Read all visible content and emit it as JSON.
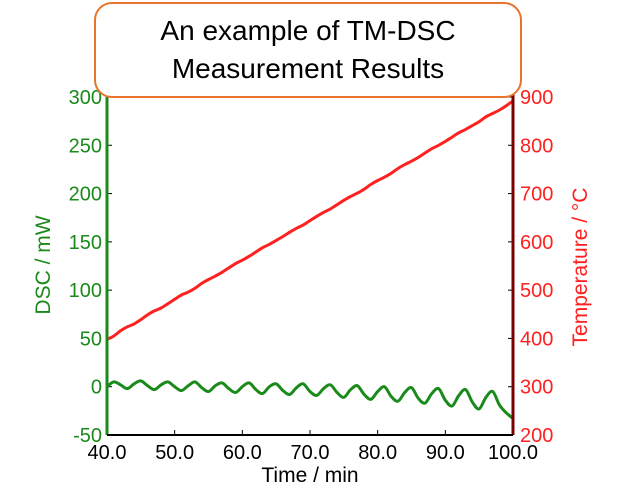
{
  "chart_data": {
    "type": "line",
    "title_lines": [
      "An example of TM-DSC",
      "Measurement Results"
    ],
    "xlabel": "Time / min",
    "ylabel_left": "DSC / mW",
    "ylabel_right": "Temperature / °C",
    "xlim": [
      40,
      100
    ],
    "ylim_left": [
      -50,
      300
    ],
    "ylim_right": [
      200,
      900
    ],
    "x_ticks": [
      "40.0",
      "50.0",
      "60.0",
      "70.0",
      "80.0",
      "90.0",
      "100.0"
    ],
    "y_ticks_left": [
      "-50",
      "0",
      "50",
      "100",
      "150",
      "200",
      "250",
      "300"
    ],
    "y_ticks_right": [
      "200",
      "300",
      "400",
      "500",
      "600",
      "700",
      "800",
      "900"
    ],
    "colors": {
      "dsc": "#1a8a1a",
      "temperature": "#ff2020",
      "axis": "#000000"
    },
    "series": [
      {
        "name": "DSC",
        "axis": "left",
        "color": "#1a8a1a",
        "x": [
          40,
          41,
          42,
          43,
          44,
          45,
          46,
          47,
          48,
          49,
          50,
          51,
          52,
          53,
          54,
          55,
          56,
          57,
          58,
          59,
          60,
          61,
          62,
          63,
          64,
          65,
          66,
          67,
          68,
          69,
          70,
          71,
          72,
          73,
          74,
          75,
          76,
          77,
          78,
          79,
          80,
          81,
          82,
          83,
          84,
          85,
          86,
          87,
          88,
          89,
          90,
          91,
          92,
          93,
          94,
          95,
          96,
          97,
          98,
          99,
          100
        ],
        "values": [
          0,
          5,
          2,
          -2,
          3,
          6,
          1,
          -3,
          2,
          5,
          0,
          -4,
          1,
          5,
          -1,
          -5,
          1,
          4,
          -2,
          -6,
          0,
          4,
          -3,
          -7,
          0,
          3,
          -4,
          -8,
          -1,
          3,
          -5,
          -9,
          -2,
          2,
          -6,
          -11,
          -3,
          1,
          -8,
          -13,
          -5,
          0,
          -10,
          -15,
          -6,
          -1,
          -12,
          -17,
          -7,
          -2,
          -14,
          -20,
          -9,
          -3,
          -16,
          -23,
          -11,
          -5,
          -19,
          -27,
          -33
        ]
      },
      {
        "name": "Temperature",
        "axis": "right",
        "color": "#ff2020",
        "x": [
          40,
          41,
          42,
          43,
          44,
          45,
          46,
          47,
          48,
          49,
          50,
          51,
          52,
          53,
          54,
          55,
          56,
          57,
          58,
          59,
          60,
          61,
          62,
          63,
          64,
          65,
          66,
          67,
          68,
          69,
          70,
          71,
          72,
          73,
          74,
          75,
          76,
          77,
          78,
          79,
          80,
          81,
          82,
          83,
          84,
          85,
          86,
          87,
          88,
          89,
          90,
          91,
          92,
          93,
          94,
          95,
          96,
          97,
          98,
          99,
          100
        ],
        "values": [
          398,
          405,
          416,
          424,
          430,
          439,
          449,
          457,
          463,
          472,
          481,
          490,
          496,
          504,
          514,
          522,
          529,
          537,
          546,
          555,
          562,
          570,
          579,
          588,
          595,
          603,
          611,
          620,
          628,
          635,
          644,
          653,
          661,
          668,
          677,
          686,
          694,
          701,
          709,
          719,
          727,
          734,
          742,
          752,
          760,
          767,
          775,
          784,
          793,
          800,
          808,
          817,
          826,
          833,
          841,
          849,
          859,
          866,
          873,
          882,
          892
        ]
      }
    ]
  }
}
